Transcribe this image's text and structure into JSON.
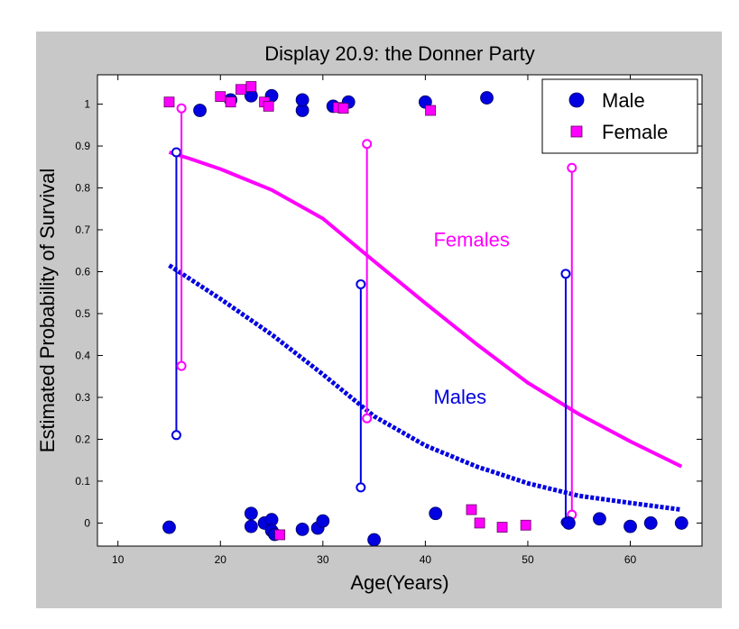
{
  "chart_data": {
    "type": "scatter",
    "title": "Display 20.9: the Donner Party",
    "xlabel": "Age(Years)",
    "ylabel": "Estimated Probability of Survival",
    "xlim": [
      8,
      67
    ],
    "ylim": [
      -0.055,
      1.07
    ],
    "x_ticks": [
      10,
      20,
      30,
      40,
      50,
      60
    ],
    "y_ticks": [
      0,
      0.1,
      0.2,
      0.3,
      0.4,
      0.5,
      0.6,
      0.7,
      0.8,
      0.9,
      1
    ],
    "grid": false,
    "legend": {
      "placement": "top-right",
      "entries": [
        {
          "label": "Male",
          "marker": "circle",
          "color": "#0000e0"
        },
        {
          "label": "Female",
          "marker": "square",
          "color": "#ff00ff"
        }
      ]
    },
    "colors": {
      "male": "#0000e0",
      "female": "#ff00ff",
      "axis": "#000000",
      "background": "#ffffff",
      "canvas": "#c8c8c8"
    },
    "series": [
      {
        "name": "Male",
        "kind": "points",
        "marker": "circle",
        "points": [
          [
            15,
            -0.01
          ],
          [
            18,
            0.985
          ],
          [
            21,
            1.01
          ],
          [
            23,
            1.02
          ],
          [
            25,
            1.02
          ],
          [
            28,
            0.985
          ],
          [
            28,
            1.01
          ],
          [
            31,
            0.995
          ],
          [
            32.5,
            1.005
          ],
          [
            40,
            1.005
          ],
          [
            46,
            1.015
          ],
          [
            23,
            0.023
          ],
          [
            23,
            -0.008
          ],
          [
            24.3,
            0.0
          ],
          [
            25,
            0.008
          ],
          [
            25,
            -0.018
          ],
          [
            25.3,
            -0.027
          ],
          [
            28,
            -0.015
          ],
          [
            29.5,
            -0.012
          ],
          [
            30,
            0.005
          ],
          [
            35,
            -0.04
          ],
          [
            41,
            0.023
          ],
          [
            54,
            0.0
          ],
          [
            57,
            0.01
          ],
          [
            60,
            -0.008
          ],
          [
            62,
            0.0
          ],
          [
            65,
            0.0
          ]
        ]
      },
      {
        "name": "Female",
        "kind": "points",
        "marker": "square",
        "points": [
          [
            15,
            1.005
          ],
          [
            20,
            1.018
          ],
          [
            21,
            1.005
          ],
          [
            22,
            1.035
          ],
          [
            23,
            1.042
          ],
          [
            24.3,
            1.005
          ],
          [
            24.7,
            0.995
          ],
          [
            31.5,
            0.992
          ],
          [
            32,
            0.99
          ],
          [
            40.5,
            0.985
          ],
          [
            25.8,
            -0.028
          ],
          [
            44.5,
            0.032
          ],
          [
            45.3,
            0.0
          ],
          [
            47.5,
            -0.01
          ],
          [
            49.8,
            -0.005
          ]
        ]
      },
      {
        "name": "Females",
        "kind": "curve",
        "style": "solid",
        "points": [
          [
            15,
            0.885
          ],
          [
            17,
            0.87
          ],
          [
            20,
            0.845
          ],
          [
            25,
            0.795
          ],
          [
            30,
            0.727
          ],
          [
            35,
            0.625
          ],
          [
            40,
            0.525
          ],
          [
            45,
            0.427
          ],
          [
            50,
            0.335
          ],
          [
            55,
            0.26
          ],
          [
            60,
            0.195
          ],
          [
            65,
            0.135
          ]
        ]
      },
      {
        "name": "Males",
        "kind": "curve",
        "style": "dotted",
        "points": [
          [
            15,
            0.615
          ],
          [
            20,
            0.535
          ],
          [
            25,
            0.45
          ],
          [
            30,
            0.355
          ],
          [
            35,
            0.255
          ],
          [
            40,
            0.185
          ],
          [
            45,
            0.135
          ],
          [
            50,
            0.095
          ],
          [
            55,
            0.065
          ],
          [
            60,
            0.048
          ],
          [
            65,
            0.032
          ]
        ]
      }
    ],
    "intervals": [
      {
        "series": "Male",
        "x": 15.7,
        "low": 0.21,
        "high": 0.885
      },
      {
        "series": "Female",
        "x": 16.2,
        "low": 0.375,
        "high": 0.99
      },
      {
        "series": "Male",
        "x": 33.7,
        "low": 0.085,
        "high": 0.57
      },
      {
        "series": "Female",
        "x": 34.3,
        "low": 0.25,
        "high": 0.905
      },
      {
        "series": "Male",
        "x": 53.7,
        "low": 0.002,
        "high": 0.595
      },
      {
        "series": "Female",
        "x": 54.3,
        "low": 0.02,
        "high": 0.848
      }
    ],
    "annotations": [
      {
        "text": "Females",
        "x": 40.8,
        "y": 0.66,
        "color": "#ff00ff"
      },
      {
        "text": "Males",
        "x": 40.8,
        "y": 0.285,
        "color": "#0000e0"
      }
    ]
  }
}
